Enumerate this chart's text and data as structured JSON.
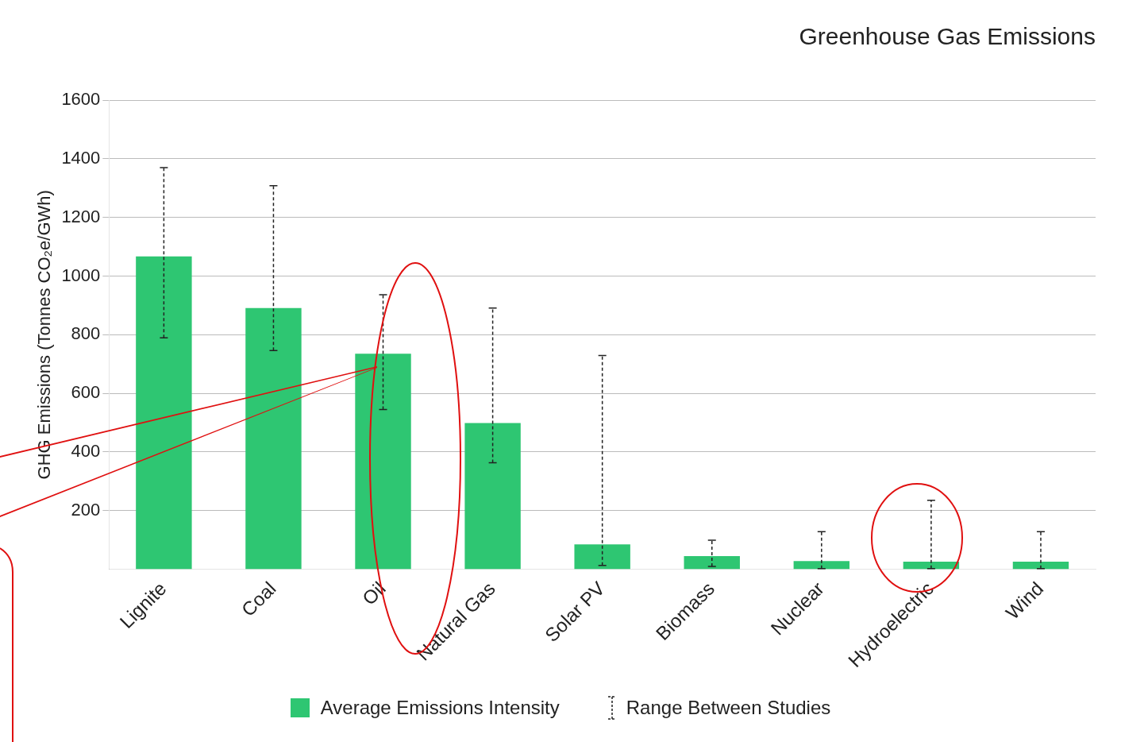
{
  "chart_data": {
    "type": "bar",
    "title": "Greenhouse Gas Emissions",
    "ylabel": "GHG Emissions (Tonnes CO₂e/GWh)",
    "categories": [
      "Lignite",
      "Coal",
      "Oil",
      "Natural Gas",
      "Solar PV",
      "Biomass",
      "Nuclear",
      "Hydroelectric",
      "Wind"
    ],
    "series": [
      {
        "name": "Average Emissions Intensity",
        "color": "#2ec672",
        "values": [
          1067,
          891,
          735,
          499,
          85,
          45,
          28,
          26,
          26
        ],
        "errors": [
          [
            789,
            1370
          ],
          [
            746,
            1308
          ],
          [
            545,
            936
          ],
          [
            363,
            891
          ],
          [
            13,
            729
          ],
          [
            10,
            99
          ],
          [
            2,
            128
          ],
          [
            2,
            235
          ],
          [
            2,
            128
          ]
        ]
      }
    ],
    "ylim": [
      0,
      1600
    ],
    "yticks": [
      200,
      400,
      600,
      800,
      {
        "value": 1000,
        "label": "1000"
      },
      {
        "value": 1200,
        "label": "1200"
      },
      {
        "value": 1400,
        "label": "1400"
      },
      {
        "value": 1600,
        "label": "1600"
      }
    ],
    "grid": "y",
    "legend": "bottom",
    "annotations": [
      "Range Between Studies"
    ]
  }
}
